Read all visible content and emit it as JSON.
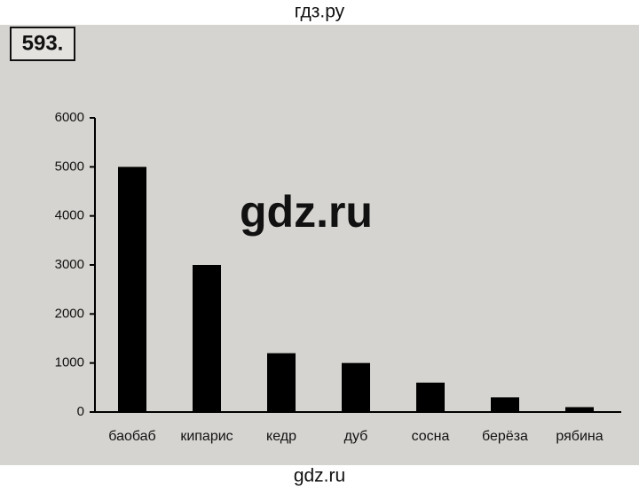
{
  "site_header": "гдз.ру",
  "problem_number": "593.",
  "watermark": "gdz.ru",
  "site_footer": "gdz.ru",
  "chart_data": {
    "type": "bar",
    "categories": [
      "баобаб",
      "кипарис",
      "кедр",
      "дуб",
      "сосна",
      "берёза",
      "рябина"
    ],
    "values": [
      5000,
      3000,
      1200,
      1000,
      600,
      300,
      100
    ],
    "color": "#000000",
    "ylim": [
      0,
      6000
    ],
    "yticks": [
      0,
      1000,
      2000,
      3000,
      4000,
      5000,
      6000
    ],
    "grid": false
  }
}
